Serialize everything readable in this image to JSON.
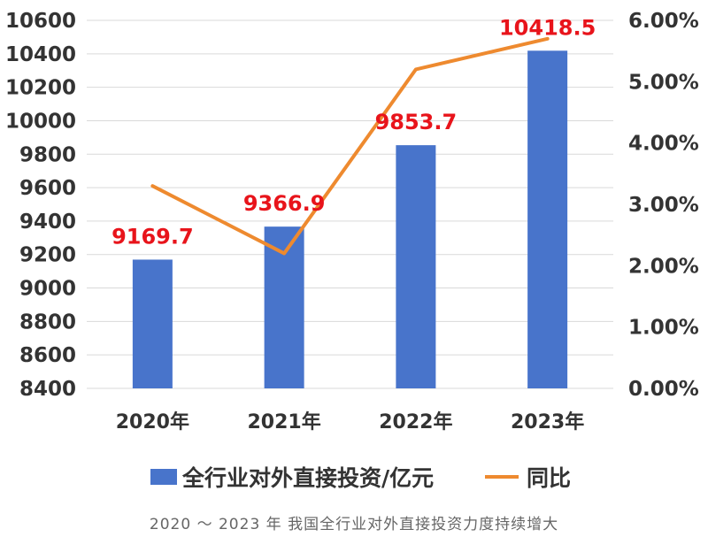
{
  "chart_data": {
    "type": "bar+line",
    "categories": [
      "2020年",
      "2021年",
      "2022年",
      "2023年"
    ],
    "series": [
      {
        "name": "全行业对外直接投资/亿元",
        "type": "bar",
        "axis": "left",
        "values": [
          9169.7,
          9366.9,
          9853.7,
          10418.5
        ],
        "labels": [
          "9169.7",
          "9366.9",
          "9853.7",
          "10418.5"
        ]
      },
      {
        "name": "同比",
        "type": "line",
        "axis": "right",
        "values": [
          3.3,
          2.2,
          5.2,
          5.7
        ]
      }
    ],
    "y_left": {
      "range": [
        8400,
        10600
      ],
      "ticks": [
        "8400",
        "8600",
        "8800",
        "9000",
        "9200",
        "9400",
        "9600",
        "9800",
        "10000",
        "10200",
        "10400",
        "10600"
      ]
    },
    "y_right": {
      "range": [
        0,
        6
      ],
      "ticks": [
        "0.00%",
        "1.00%",
        "2.00%",
        "3.00%",
        "4.00%",
        "5.00%",
        "6.00%"
      ]
    },
    "grid": true,
    "legend_position": "bottom",
    "colors": {
      "bar": "#4874cb",
      "line": "#ee8a2f",
      "data_label": "#e8141b",
      "grid": "#d9d9d9",
      "axis_text": "#333333"
    }
  },
  "caption": "2020 ～ 2023 年 我国全行业对外直接投资力度持续增大"
}
